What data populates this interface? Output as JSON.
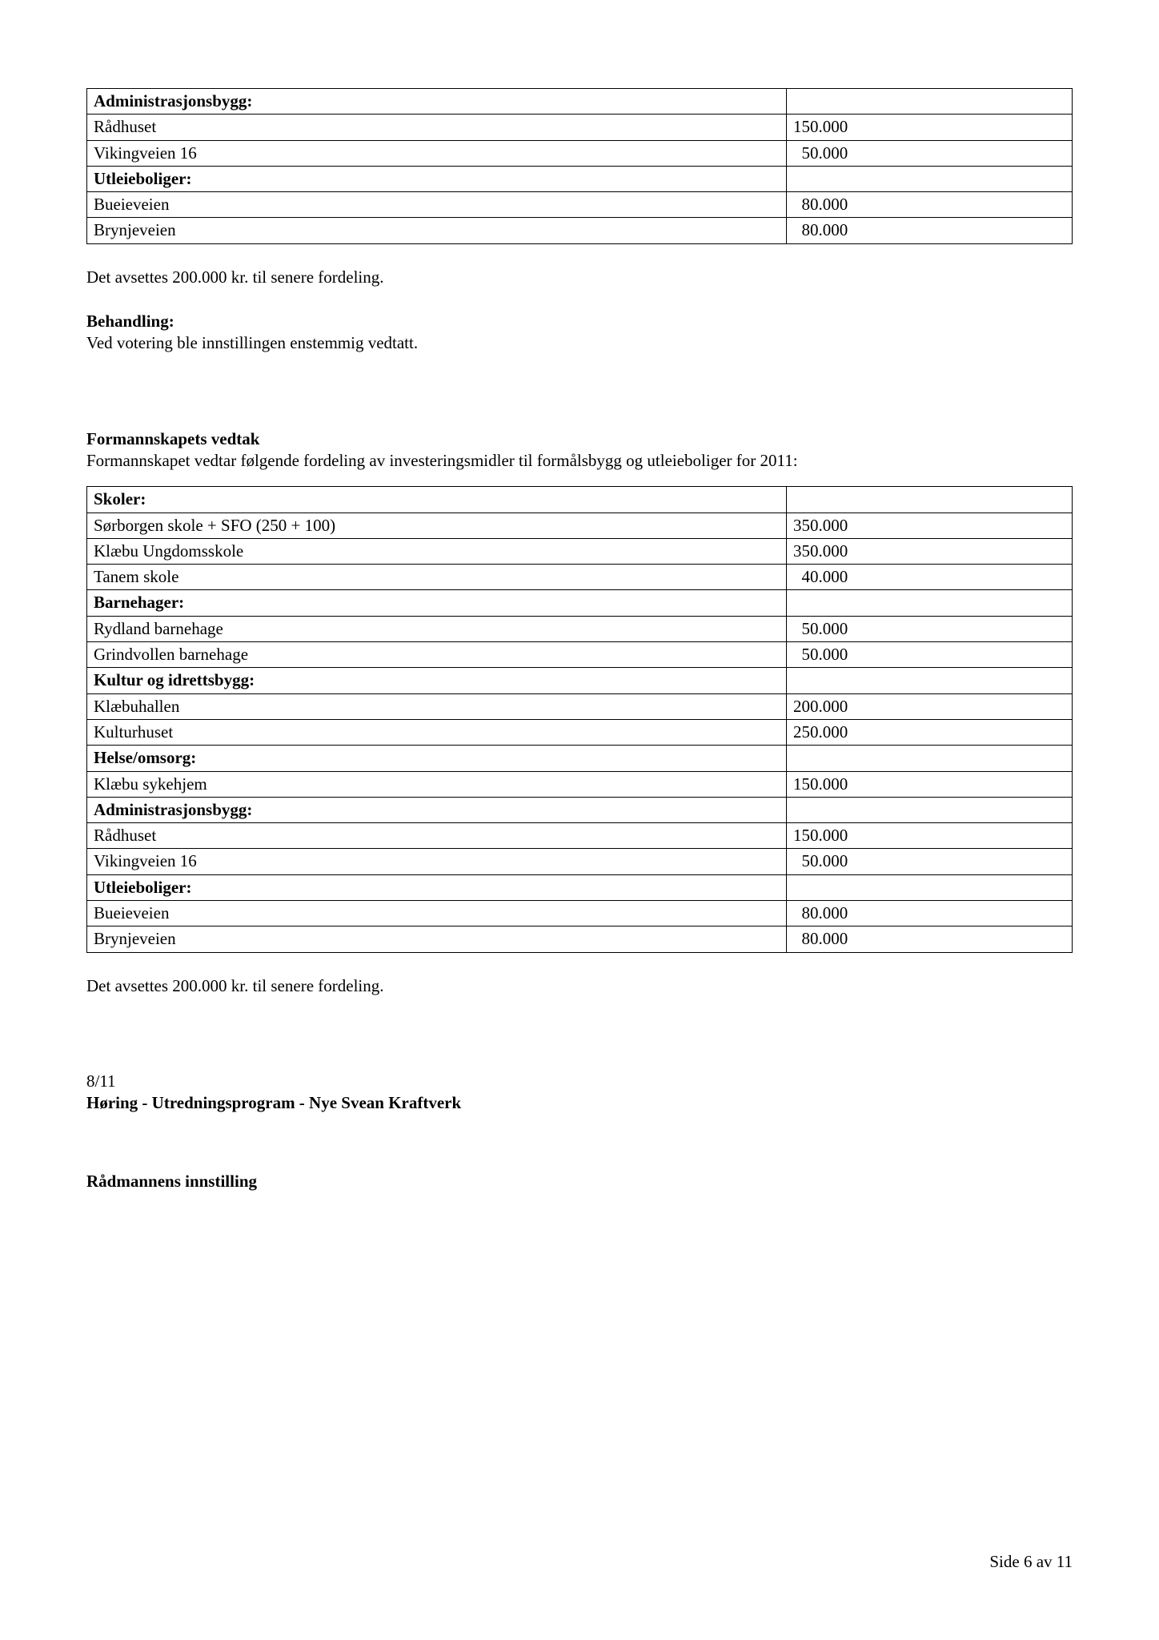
{
  "table1": {
    "rows": [
      {
        "label": "Administrasjonsbygg:",
        "bold": true,
        "value": ""
      },
      {
        "label": "Rådhuset",
        "bold": false,
        "value": "150.000"
      },
      {
        "label": "Vikingveien 16",
        "bold": false,
        "value": "  50.000"
      },
      {
        "label": "Utleieboliger:",
        "bold": true,
        "value": ""
      },
      {
        "label": "Bueieveien",
        "bold": false,
        "value": "  80.000"
      },
      {
        "label": "Brynjeveien",
        "bold": false,
        "value": "  80.000"
      }
    ]
  },
  "after_table1_text": "Det avsettes 200.000 kr. til senere fordeling.",
  "behandling_heading": "Behandling:",
  "behandling_body": "Ved votering ble innstillingen enstemmig vedtatt.",
  "vedtak_heading": "Formannskapets vedtak",
  "vedtak_body": "Formannskapet vedtar følgende fordeling av investeringsmidler til formålsbygg og utleieboliger for 2011:",
  "table2": {
    "rows": [
      {
        "label": "Skoler:",
        "bold": true,
        "value": ""
      },
      {
        "label": "Sørborgen skole + SFO (250 + 100)",
        "bold": false,
        "value": "350.000"
      },
      {
        "label": "Klæbu Ungdomsskole",
        "bold": false,
        "value": "350.000"
      },
      {
        "label": "Tanem skole",
        "bold": false,
        "value": "  40.000"
      },
      {
        "label": "Barnehager:",
        "bold": true,
        "value": ""
      },
      {
        "label": "Rydland barnehage",
        "bold": false,
        "value": "  50.000"
      },
      {
        "label": "Grindvollen barnehage",
        "bold": false,
        "value": "  50.000"
      },
      {
        "label": "Kultur og idrettsbygg:",
        "bold": true,
        "value": ""
      },
      {
        "label": "Klæbuhallen",
        "bold": false,
        "value": "200.000"
      },
      {
        "label": "Kulturhuset",
        "bold": false,
        "value": "250.000"
      },
      {
        "label": "Helse/omsorg:",
        "bold": true,
        "value": ""
      },
      {
        "label": "Klæbu sykehjem",
        "bold": false,
        "value": "150.000"
      },
      {
        "label": "Administrasjonsbygg:",
        "bold": true,
        "value": ""
      },
      {
        "label": "Rådhuset",
        "bold": false,
        "value": "150.000"
      },
      {
        "label": "Vikingveien 16",
        "bold": false,
        "value": "  50.000"
      },
      {
        "label": "Utleieboliger:",
        "bold": true,
        "value": ""
      },
      {
        "label": "Bueieveien",
        "bold": false,
        "value": "  80.000"
      },
      {
        "label": "Brynjeveien",
        "bold": false,
        "value": "  80.000"
      }
    ]
  },
  "after_table2_text": "Det avsettes 200.000 kr. til senere fordeling.",
  "case_number": "8/11",
  "case_title": "Høring - Utredningsprogram - Nye Svean Kraftverk",
  "radmann_heading": "Rådmannens innstilling",
  "footer": "Side 6 av 11"
}
